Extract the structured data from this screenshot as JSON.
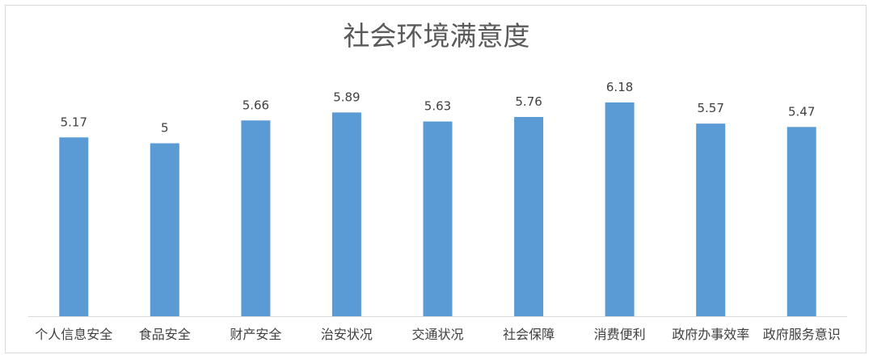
{
  "chart_data": {
    "type": "bar",
    "title": "社会环境满意度",
    "categories": [
      "个人信息安全",
      "食品安全",
      "财产安全",
      "治安状况",
      "交通状况",
      "社会保障",
      "消费便利",
      "政府办事效率",
      "政府服务意识"
    ],
    "values": [
      5.17,
      5,
      5.66,
      5.89,
      5.63,
      5.76,
      6.18,
      5.57,
      5.47
    ],
    "value_labels": [
      "5.17",
      "5",
      "5.66",
      "5.89",
      "5.63",
      "5.76",
      "6.18",
      "5.57",
      "5.47"
    ],
    "ylim": [
      0,
      6.18
    ],
    "grid": false,
    "legend": "none",
    "bar_color": "#5b9bd5",
    "axis_color": "#d9d9d9"
  }
}
